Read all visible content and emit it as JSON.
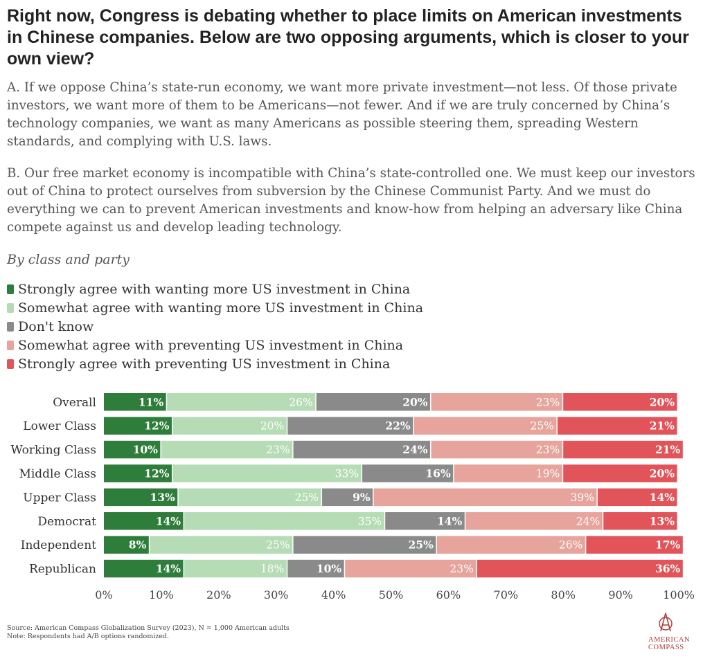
{
  "title": "Right now, Congress is debating whether to place limits on American investments in Chinese companies. Below are two opposing arguments, which is closer to your own view?",
  "option_a": "A. If we oppose China’s state-run economy, we want more private investment—not less. Of those private investors, we want more of them to be Americans—not fewer. And if we are truly concerned by China’s technology companies, we want as many Americans as possible steering them, spreading Western standards, and complying with U.S. laws.",
  "option_b": "B. Our free market economy is incompatible with China’s state-controlled one. We must keep our investors out of China to protect ourselves from subversion by the Chinese Communist Party. And we must do everything we can to prevent American investments and know-how from helping an adversary like China compete against us and develop leading technology.",
  "subtitle": "By class and party",
  "legend": [
    {
      "label": "Strongly agree with wanting more US investment in China",
      "color": "#2e7d3a"
    },
    {
      "label": "Somewhat agree with wanting more US investment in China",
      "color": "#b5dcb5"
    },
    {
      "label": "Don't know",
      "color": "#8a8a8a"
    },
    {
      "label": "Somewhat agree with preventing US investment in China",
      "color": "#e6a49c"
    },
    {
      "label": "Strongly agree with preventing US investment in China",
      "color": "#e0545a"
    }
  ],
  "chart_data": {
    "type": "bar",
    "orientation": "horizontal-stacked-100",
    "categories": [
      "Overall",
      "Lower Class",
      "Working Class",
      "Middle Class",
      "Upper Class",
      "Democrat",
      "Independent",
      "Republican"
    ],
    "series": [
      {
        "name": "Strongly agree with wanting more US investment in China",
        "color": "#2e7d3a",
        "label_color": "#ffffff",
        "values": [
          11,
          12,
          10,
          12,
          13,
          14,
          8,
          14
        ]
      },
      {
        "name": "Somewhat agree with wanting more US investment in China",
        "color": "#b5dcb5",
        "label_color": "#ffffff",
        "values": [
          26,
          20,
          23,
          33,
          25,
          35,
          25,
          18
        ]
      },
      {
        "name": "Don't know",
        "color": "#8a8a8a",
        "label_color": "#ffffff",
        "values": [
          20,
          22,
          24,
          16,
          9,
          14,
          25,
          10
        ]
      },
      {
        "name": "Somewhat agree with preventing US investment in China",
        "color": "#e6a49c",
        "label_color": "#ffffff",
        "values": [
          23,
          25,
          23,
          19,
          39,
          24,
          26,
          23
        ]
      },
      {
        "name": "Strongly agree with preventing US investment in China",
        "color": "#e0545a",
        "label_color": "#ffffff",
        "values": [
          20,
          21,
          21,
          20,
          14,
          13,
          17,
          36
        ]
      }
    ],
    "value_suffix": "%",
    "xlim": [
      0,
      100
    ],
    "xticks": [
      "0%",
      "10%",
      "20%",
      "30%",
      "40%",
      "50%",
      "60%",
      "70%",
      "80%",
      "90%",
      "100%"
    ],
    "legend_position": "top-left",
    "grid": false
  },
  "source": "Source: American Compass Globalization Survey (2023), N = 1,000 American adults",
  "note": "Note: Respondents had A/B options randomized.",
  "logo": {
    "line1": "AMERICAN",
    "line2": "COMPASS"
  }
}
